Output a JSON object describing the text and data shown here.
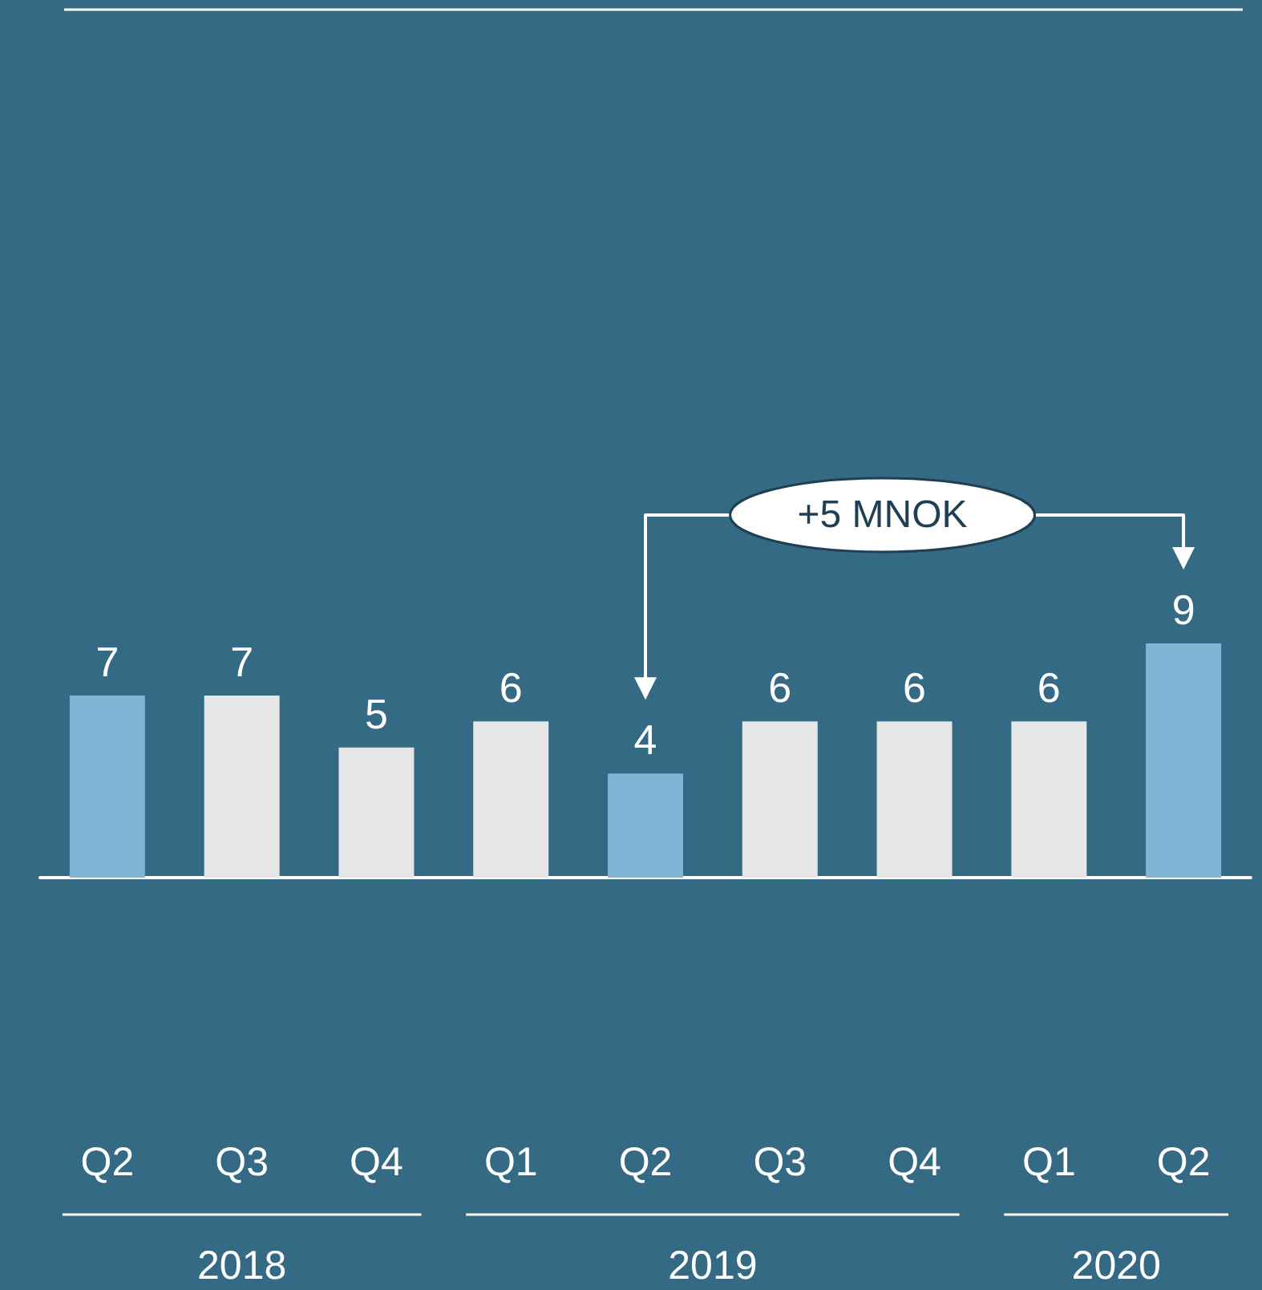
{
  "chart_data": {
    "type": "bar",
    "categories": [
      "Q2",
      "Q3",
      "Q4",
      "Q1",
      "Q2",
      "Q3",
      "Q4",
      "Q1",
      "Q2"
    ],
    "values": [
      7,
      7,
      5,
      6,
      4,
      6,
      6,
      6,
      9
    ],
    "colors": [
      "#7fb5d5",
      "#e6e6e6",
      "#e6e6e6",
      "#e6e6e6",
      "#7fb5d5",
      "#e6e6e6",
      "#e6e6e6",
      "#e6e6e6",
      "#7fb5d5"
    ],
    "data_labels": true,
    "annotations": [
      "+5 MNOK",
      "2018",
      "2019",
      "2020"
    ]
  }
}
